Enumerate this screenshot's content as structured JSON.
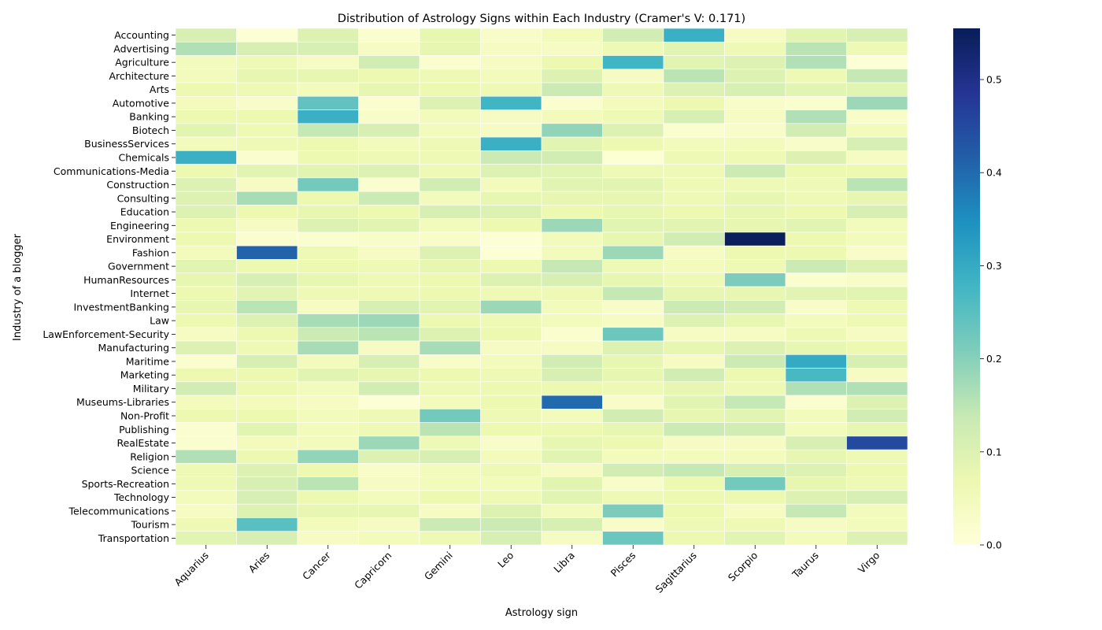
{
  "chart_data": {
    "type": "heatmap",
    "title": "Distribution of Astrology Signs within Each Industry (Cramer's V: 0.171)",
    "xlabel": "Astrology sign",
    "ylabel": "Industry of a blogger",
    "x_categories": [
      "Aquarius",
      "Aries",
      "Cancer",
      "Capricorn",
      "Gemini",
      "Leo",
      "Libra",
      "Pisces",
      "Sagittarius",
      "Scorpio",
      "Taurus",
      "Virgo"
    ],
    "y_categories": [
      "Accounting",
      "Advertising",
      "Agriculture",
      "Architecture",
      "Arts",
      "Automotive",
      "Banking",
      "Biotech",
      "BusinessServices",
      "Chemicals",
      "Communications-Media",
      "Construction",
      "Consulting",
      "Education",
      "Engineering",
      "Environment",
      "Fashion",
      "Government",
      "HumanResources",
      "Internet",
      "InvestmentBanking",
      "Law",
      "LawEnforcement-Security",
      "Manufacturing",
      "Maritime",
      "Marketing",
      "Military",
      "Museums-Libraries",
      "Non-Profit",
      "Publishing",
      "RealEstate",
      "Religion",
      "Science",
      "Sports-Recreation",
      "Technology",
      "Telecommunications",
      "Tourism",
      "Transportation"
    ],
    "values": [
      [
        0.11,
        0.01,
        0.1,
        0.02,
        0.08,
        0.03,
        0.05,
        0.12,
        0.29,
        0.04,
        0.09,
        0.11
      ],
      [
        0.16,
        0.11,
        0.11,
        0.04,
        0.08,
        0.04,
        0.04,
        0.06,
        0.09,
        0.06,
        0.15,
        0.06
      ],
      [
        0.05,
        0.06,
        0.04,
        0.12,
        0.02,
        0.04,
        0.07,
        0.28,
        0.09,
        0.1,
        0.16,
        0.01
      ],
      [
        0.05,
        0.08,
        0.08,
        0.07,
        0.06,
        0.05,
        0.1,
        0.04,
        0.15,
        0.1,
        0.06,
        0.14
      ],
      [
        0.07,
        0.06,
        0.05,
        0.08,
        0.07,
        0.06,
        0.13,
        0.06,
        0.1,
        0.11,
        0.09,
        0.09
      ],
      [
        0.05,
        0.03,
        0.24,
        0.02,
        0.1,
        0.28,
        0.02,
        0.05,
        0.07,
        0.03,
        0.02,
        0.18
      ],
      [
        0.07,
        0.07,
        0.29,
        0.03,
        0.05,
        0.04,
        0.05,
        0.06,
        0.11,
        0.04,
        0.16,
        0.03
      ],
      [
        0.09,
        0.06,
        0.14,
        0.11,
        0.05,
        0.04,
        0.19,
        0.1,
        0.02,
        0.03,
        0.12,
        0.05
      ],
      [
        0.05,
        0.06,
        0.07,
        0.05,
        0.06,
        0.29,
        0.09,
        0.07,
        0.05,
        0.05,
        0.03,
        0.11
      ],
      [
        0.29,
        0.02,
        0.07,
        0.06,
        0.06,
        0.13,
        0.12,
        0.01,
        0.06,
        0.06,
        0.1,
        0.04
      ],
      [
        0.07,
        0.09,
        0.09,
        0.1,
        0.06,
        0.1,
        0.09,
        0.06,
        0.06,
        0.13,
        0.07,
        0.07
      ],
      [
        0.1,
        0.04,
        0.22,
        0.02,
        0.12,
        0.05,
        0.09,
        0.09,
        0.06,
        0.06,
        0.06,
        0.15
      ],
      [
        0.1,
        0.17,
        0.07,
        0.13,
        0.05,
        0.08,
        0.08,
        0.08,
        0.06,
        0.08,
        0.06,
        0.08
      ],
      [
        0.1,
        0.07,
        0.08,
        0.07,
        0.11,
        0.1,
        0.07,
        0.08,
        0.07,
        0.08,
        0.07,
        0.11
      ],
      [
        0.07,
        0.04,
        0.1,
        0.09,
        0.05,
        0.07,
        0.18,
        0.09,
        0.09,
        0.08,
        0.09,
        0.05
      ],
      [
        0.07,
        0.02,
        0.02,
        0.03,
        0.03,
        0.01,
        0.05,
        0.08,
        0.12,
        0.55,
        0.07,
        0.05
      ],
      [
        0.05,
        0.41,
        0.06,
        0.04,
        0.1,
        0.01,
        0.05,
        0.18,
        0.04,
        0.07,
        0.07,
        0.03
      ],
      [
        0.09,
        0.07,
        0.07,
        0.06,
        0.08,
        0.07,
        0.14,
        0.06,
        0.05,
        0.06,
        0.13,
        0.1
      ],
      [
        0.08,
        0.11,
        0.08,
        0.06,
        0.07,
        0.1,
        0.11,
        0.08,
        0.06,
        0.21,
        0.02,
        0.03
      ],
      [
        0.07,
        0.09,
        0.06,
        0.06,
        0.07,
        0.06,
        0.06,
        0.14,
        0.08,
        0.08,
        0.09,
        0.09
      ],
      [
        0.08,
        0.15,
        0.04,
        0.11,
        0.09,
        0.18,
        0.05,
        0.03,
        0.13,
        0.12,
        0.03,
        0.06
      ],
      [
        0.07,
        0.1,
        0.17,
        0.18,
        0.07,
        0.06,
        0.05,
        0.04,
        0.1,
        0.08,
        0.05,
        0.06
      ],
      [
        0.04,
        0.07,
        0.13,
        0.15,
        0.1,
        0.07,
        0.02,
        0.23,
        0.04,
        0.04,
        0.06,
        0.04
      ],
      [
        0.1,
        0.06,
        0.17,
        0.04,
        0.17,
        0.04,
        0.04,
        0.1,
        0.08,
        0.1,
        0.08,
        0.07
      ],
      [
        0.02,
        0.11,
        0.05,
        0.11,
        0.03,
        0.05,
        0.12,
        0.08,
        0.04,
        0.13,
        0.3,
        0.11
      ],
      [
        0.07,
        0.07,
        0.09,
        0.08,
        0.07,
        0.06,
        0.11,
        0.08,
        0.12,
        0.07,
        0.27,
        0.04
      ],
      [
        0.12,
        0.07,
        0.05,
        0.12,
        0.06,
        0.07,
        0.07,
        0.06,
        0.08,
        0.06,
        0.16,
        0.16
      ],
      [
        0.05,
        0.05,
        0.04,
        0.01,
        0.05,
        0.07,
        0.4,
        0.03,
        0.09,
        0.14,
        0.02,
        0.1
      ],
      [
        0.07,
        0.07,
        0.05,
        0.06,
        0.22,
        0.06,
        0.05,
        0.12,
        0.08,
        0.09,
        0.05,
        0.12
      ],
      [
        0.02,
        0.09,
        0.05,
        0.06,
        0.15,
        0.07,
        0.07,
        0.08,
        0.13,
        0.12,
        0.05,
        0.08
      ],
      [
        0.02,
        0.05,
        0.05,
        0.18,
        0.06,
        0.03,
        0.08,
        0.07,
        0.04,
        0.04,
        0.11,
        0.45
      ],
      [
        0.16,
        0.07,
        0.19,
        0.1,
        0.11,
        0.05,
        0.09,
        0.05,
        0.05,
        0.05,
        0.08,
        0.06
      ],
      [
        0.06,
        0.1,
        0.07,
        0.03,
        0.05,
        0.06,
        0.04,
        0.12,
        0.14,
        0.11,
        0.1,
        0.07
      ],
      [
        0.06,
        0.11,
        0.15,
        0.04,
        0.05,
        0.05,
        0.09,
        0.03,
        0.07,
        0.22,
        0.08,
        0.06
      ],
      [
        0.05,
        0.11,
        0.07,
        0.05,
        0.07,
        0.06,
        0.09,
        0.06,
        0.07,
        0.07,
        0.1,
        0.11
      ],
      [
        0.04,
        0.1,
        0.08,
        0.08,
        0.04,
        0.1,
        0.05,
        0.21,
        0.07,
        0.04,
        0.14,
        0.05
      ],
      [
        0.06,
        0.25,
        0.05,
        0.04,
        0.13,
        0.13,
        0.11,
        0.03,
        0.06,
        0.06,
        0.04,
        0.05
      ],
      [
        0.09,
        0.11,
        0.04,
        0.05,
        0.06,
        0.11,
        0.04,
        0.23,
        0.07,
        0.09,
        0.05,
        0.1
      ]
    ],
    "colorbar": {
      "colormap": "YlGnBu",
      "min": 0.0,
      "max": 0.555,
      "ticks": [
        0.0,
        0.1,
        0.2,
        0.3,
        0.4,
        0.5
      ],
      "tick_labels": [
        "0.0",
        "0.1",
        "0.2",
        "0.3",
        "0.4",
        "0.5"
      ]
    },
    "grid": false,
    "legend": "colorbar-right"
  }
}
